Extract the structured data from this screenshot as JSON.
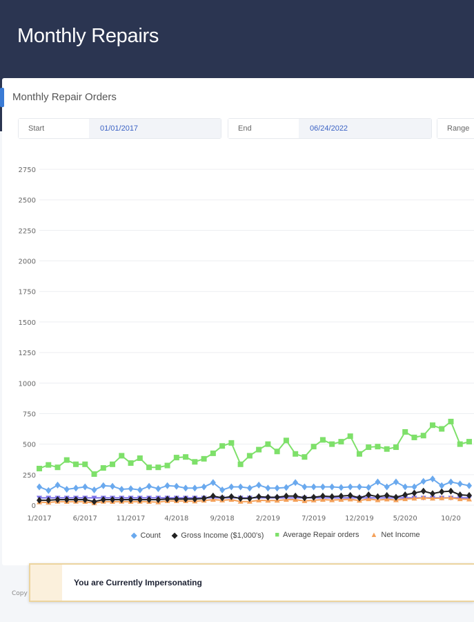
{
  "header": {
    "title": "Monthly Repairs"
  },
  "card": {
    "title": "Monthly Repair Orders"
  },
  "filters": {
    "start": {
      "label": "Start",
      "value": "01/01/2017"
    },
    "end": {
      "label": "End",
      "value": "06/24/2022"
    },
    "range": {
      "label": "Range"
    }
  },
  "chart_data": {
    "type": "line",
    "ylim": [
      0,
      2750
    ],
    "yticks": [
      "0",
      "250",
      "500",
      "750",
      "1000",
      "1250",
      "1500",
      "1750",
      "2000",
      "2250",
      "2500",
      "2750"
    ],
    "xticks": [
      "1/2017",
      "6/2017",
      "11/2017",
      "4/2018",
      "9/2018",
      "2/2019",
      "7/2019",
      "12/2019",
      "5/2020",
      "10/20"
    ],
    "legend_position": "bottom",
    "series": [
      {
        "name": "Count",
        "color": "#6aa9ee",
        "marker": "diamond",
        "values": [
          150,
          120,
          165,
          130,
          140,
          150,
          125,
          160,
          155,
          130,
          135,
          125,
          155,
          135,
          160,
          155,
          140,
          140,
          150,
          185,
          125,
          150,
          150,
          140,
          165,
          140,
          140,
          145,
          185,
          150,
          150,
          150,
          150,
          145,
          150,
          150,
          145,
          190,
          150,
          190,
          150,
          150,
          195,
          215,
          160,
          190,
          175,
          160
        ]
      },
      {
        "name": "Gross Income ($1,000's)",
        "color": "#222222",
        "marker": "diamond",
        "values": [
          40,
          40,
          45,
          45,
          45,
          45,
          30,
          45,
          45,
          45,
          45,
          45,
          45,
          45,
          50,
          50,
          50,
          50,
          55,
          75,
          60,
          70,
          55,
          55,
          70,
          65,
          65,
          75,
          75,
          60,
          65,
          75,
          70,
          75,
          80,
          60,
          85,
          70,
          80,
          65,
          85,
          100,
          115,
          95,
          110,
          115,
          85,
          80
        ]
      },
      {
        "name": "Average Repair orders",
        "color": "#7ee06a",
        "marker": "square",
        "values": [
          300,
          330,
          310,
          370,
          335,
          335,
          255,
          305,
          335,
          405,
          345,
          385,
          310,
          310,
          325,
          390,
          395,
          355,
          380,
          425,
          485,
          510,
          335,
          405,
          455,
          500,
          440,
          530,
          420,
          395,
          480,
          535,
          500,
          520,
          565,
          420,
          475,
          480,
          460,
          475,
          600,
          555,
          570,
          655,
          625,
          685,
          500,
          520
        ]
      },
      {
        "name": "Net Income",
        "color": "#f4a15a",
        "marker": "triangle",
        "values": [
          25,
          22,
          30,
          28,
          30,
          28,
          18,
          30,
          28,
          30,
          28,
          30,
          28,
          25,
          35,
          35,
          35,
          32,
          38,
          45,
          40,
          45,
          30,
          30,
          40,
          38,
          38,
          45,
          45,
          35,
          40,
          45,
          42,
          45,
          48,
          38,
          50,
          42,
          48,
          42,
          50,
          55,
          60,
          55,
          58,
          60,
          50,
          48
        ]
      },
      {
        "name": "",
        "color": "#7a6ee8",
        "marker": "triangle-down",
        "values": [
          60,
          60,
          60,
          60,
          60,
          60,
          60,
          60,
          60,
          60,
          60,
          60,
          60,
          60,
          60,
          60,
          60,
          60,
          60,
          60,
          60,
          60,
          60,
          60,
          60,
          60,
          60,
          60,
          60,
          60,
          60,
          60,
          60,
          60,
          60,
          60,
          60,
          60,
          60,
          60,
          60,
          60,
          60,
          60,
          60,
          60,
          60,
          60
        ]
      }
    ]
  },
  "banner": {
    "text": "You are Currently Impersonating"
  },
  "footer": {
    "copy": "Copy"
  }
}
